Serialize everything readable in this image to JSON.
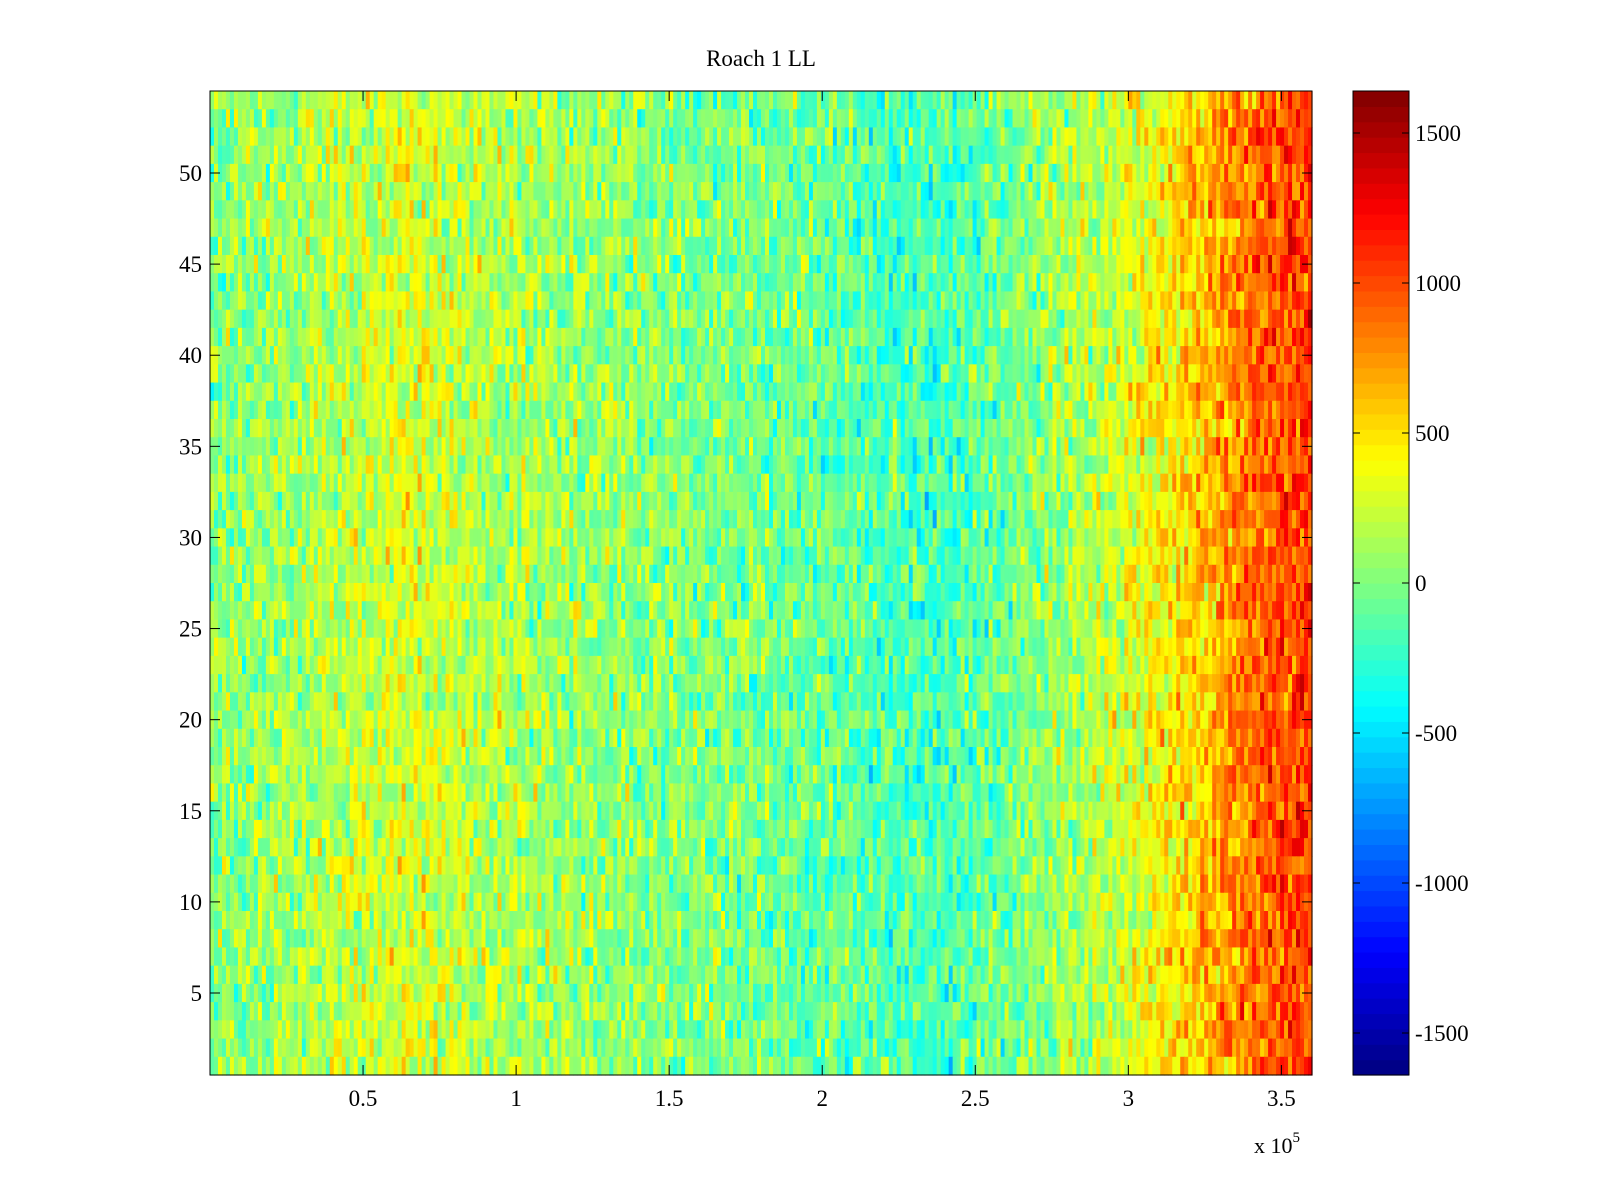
{
  "chart_data": {
    "type": "heatmap",
    "title": "Roach 1 LL",
    "xlabel": "",
    "ylabel": "",
    "x_exponent_label": {
      "base": "x 10",
      "exponent": "5"
    },
    "xlim": [
      0,
      360000
    ],
    "ylim": [
      0.5,
      54.5
    ],
    "rows": 54,
    "x_ticks": [
      {
        "value": 50000,
        "label": "0.5"
      },
      {
        "value": 100000,
        "label": "1"
      },
      {
        "value": 150000,
        "label": "1.5"
      },
      {
        "value": 200000,
        "label": "2"
      },
      {
        "value": 250000,
        "label": "2.5"
      },
      {
        "value": 300000,
        "label": "3"
      },
      {
        "value": 350000,
        "label": "3.5"
      }
    ],
    "y_ticks": [
      {
        "value": 5,
        "label": "5"
      },
      {
        "value": 10,
        "label": "10"
      },
      {
        "value": 15,
        "label": "15"
      },
      {
        "value": 20,
        "label": "20"
      },
      {
        "value": 25,
        "label": "25"
      },
      {
        "value": 30,
        "label": "30"
      },
      {
        "value": 35,
        "label": "35"
      },
      {
        "value": 40,
        "label": "40"
      },
      {
        "value": 45,
        "label": "45"
      },
      {
        "value": 50,
        "label": "50"
      }
    ],
    "colorbar": {
      "colormap": "jet",
      "clim": [
        -1640,
        1640
      ],
      "ticks": [
        {
          "value": 1500,
          "label": "1500"
        },
        {
          "value": 1000,
          "label": "1000"
        },
        {
          "value": 500,
          "label": "500"
        },
        {
          "value": 0,
          "label": "0"
        },
        {
          "value": -500,
          "label": "-500"
        },
        {
          "value": -1000,
          "label": "-1000"
        },
        {
          "value": -1500,
          "label": "-1500"
        }
      ]
    },
    "column_profile": [
      {
        "x": 0,
        "value": 20
      },
      {
        "x": 20000,
        "value": 80
      },
      {
        "x": 40000,
        "value": 170
      },
      {
        "x": 65000,
        "value": 300
      },
      {
        "x": 90000,
        "value": 180
      },
      {
        "x": 120000,
        "value": 80
      },
      {
        "x": 160000,
        "value": 0
      },
      {
        "x": 200000,
        "value": -60
      },
      {
        "x": 235000,
        "value": -200
      },
      {
        "x": 250000,
        "value": -120
      },
      {
        "x": 270000,
        "value": 40
      },
      {
        "x": 295000,
        "value": 220
      },
      {
        "x": 310000,
        "value": 420
      },
      {
        "x": 330000,
        "value": 700
      },
      {
        "x": 345000,
        "value": 950
      },
      {
        "x": 360000,
        "value": 1050
      }
    ]
  }
}
